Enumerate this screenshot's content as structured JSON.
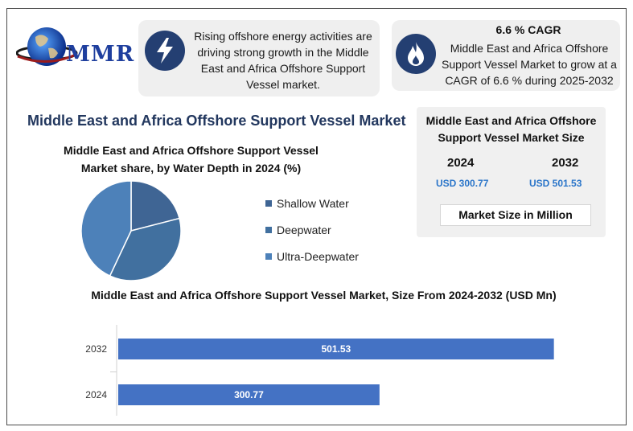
{
  "logo": {
    "text": "MMR"
  },
  "cards": {
    "driver": {
      "icon": "lightning-bolt-icon",
      "text": "Rising offshore energy activities are driving strong growth in the Middle East and Africa Offshore Support Vessel market."
    },
    "cagr": {
      "icon": "flame-icon",
      "title": "6.6 % CAGR",
      "text": "Middle East and Africa Offshore Support Vessel Market to grow at a CAGR of 6.6 % during 2025-2032"
    }
  },
  "main_title": "Middle East and Africa Offshore Support Vessel Market",
  "market_size": {
    "title": "Middle East and Africa Offshore Support Vessel Market Size",
    "year1": "2024",
    "year2": "2032",
    "value1": "USD 300.77",
    "value2": "USD 501.53",
    "unit": "Market Size in Million"
  },
  "colors": {
    "navy": "#243f72",
    "title_blue": "#22375e",
    "bar": "#4472c4",
    "usd": "#2a75c9"
  },
  "chart_data": [
    {
      "type": "pie",
      "title": "Middle East and Africa Offshore Support Vessel Market share, by Water Depth  in 2024 (%)",
      "categories": [
        "Shallow Water",
        "Deepwater",
        "Ultra-Deepwater"
      ],
      "values": [
        21,
        36,
        43
      ],
      "colors": [
        "#3f6594",
        "#41709f",
        "#4d81b9"
      ],
      "legend_position": "right"
    },
    {
      "type": "bar",
      "orientation": "horizontal",
      "title": "Middle East and Africa Offshore Support Vessel Market, Size From 2024-2032 (USD Mn)",
      "categories": [
        "2032",
        "2024"
      ],
      "values": [
        501.53,
        300.77
      ],
      "value_labels": [
        "501.53",
        "300.77"
      ],
      "xlim": [
        0,
        550
      ],
      "grid": false
    }
  ]
}
